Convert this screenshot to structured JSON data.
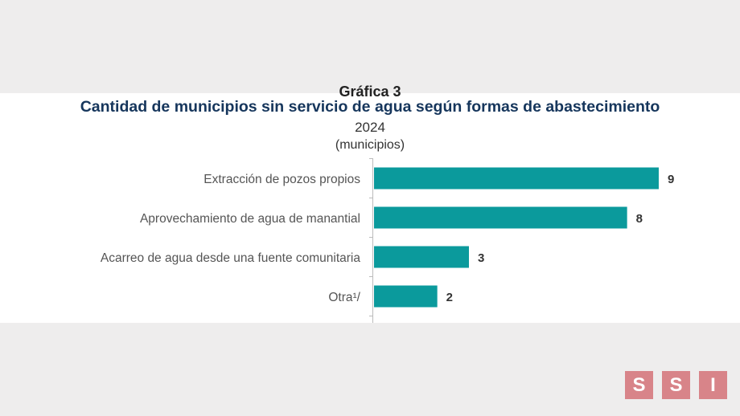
{
  "chart_data": {
    "type": "bar",
    "orientation": "horizontal",
    "kicker": "Gráfica 3",
    "title": "Cantidad de municipios sin servicio de agua según formas de abastecimiento",
    "subtitle": "2024",
    "unit": "(municipios)",
    "categories": [
      "Extracción de pozos propios",
      "Aprovechamiento de agua de manantial",
      "Acarreo de agua desde una fuente comunitaria",
      "Otra¹/"
    ],
    "values": [
      9,
      8,
      3,
      2
    ],
    "data_labels": [
      "9",
      "8",
      "3",
      "2"
    ],
    "bar_color": "#0b9a9c",
    "grid": false,
    "xlim": [
      0,
      9.5
    ]
  },
  "logo": {
    "letters": [
      "S",
      "S",
      "I"
    ],
    "color": "#d88489"
  }
}
